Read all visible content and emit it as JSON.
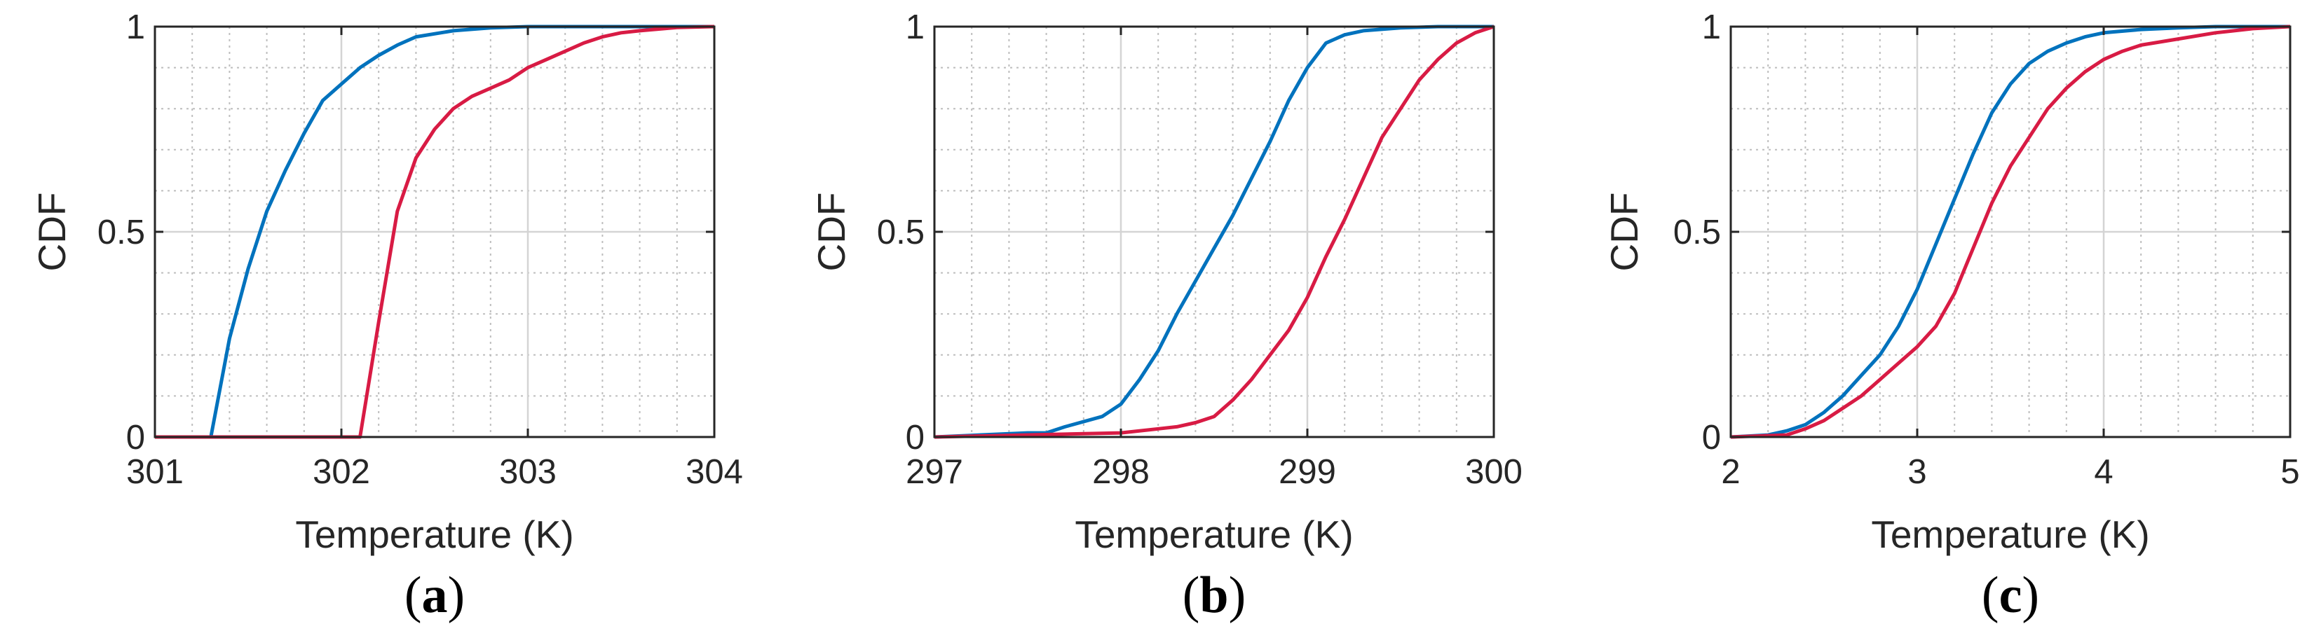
{
  "colors": {
    "series_blue": "#0072BD",
    "series_red": "#D81B44",
    "grid": "#bdbdbd",
    "axes": "#262626"
  },
  "chart_data": [
    {
      "type": "line",
      "panel_label": "a",
      "xlabel": "Temperature (K)",
      "ylabel": "CDF",
      "xlim": [
        301,
        304
      ],
      "ylim": [
        0,
        1
      ],
      "xticks": [
        "301",
        "302",
        "303",
        "304"
      ],
      "yticks": [
        "0",
        "0.5",
        "1"
      ],
      "series": [
        {
          "name": "blue",
          "color": "#0072BD",
          "x": [
            301,
            301.3,
            301.4,
            301.5,
            301.6,
            301.7,
            301.8,
            301.9,
            302.0,
            302.1,
            302.2,
            302.3,
            302.4,
            302.6,
            302.8,
            303.0,
            303.3,
            304.0
          ],
          "y": [
            0,
            0,
            0.24,
            0.41,
            0.55,
            0.65,
            0.74,
            0.82,
            0.86,
            0.9,
            0.93,
            0.955,
            0.975,
            0.99,
            0.997,
            1,
            1,
            1
          ]
        },
        {
          "name": "red",
          "color": "#D81B44",
          "x": [
            301,
            302.1,
            302.2,
            302.3,
            302.4,
            302.5,
            302.6,
            302.7,
            302.8,
            302.9,
            303.0,
            303.1,
            303.2,
            303.3,
            303.4,
            303.5,
            303.6,
            303.8,
            304.0
          ],
          "y": [
            0,
            0,
            0.28,
            0.55,
            0.68,
            0.75,
            0.8,
            0.83,
            0.85,
            0.87,
            0.9,
            0.92,
            0.94,
            0.96,
            0.975,
            0.985,
            0.99,
            0.998,
            1
          ]
        }
      ]
    },
    {
      "type": "line",
      "panel_label": "b",
      "xlabel": "Temperature (K)",
      "ylabel": "CDF",
      "xlim": [
        297,
        300
      ],
      "ylim": [
        0,
        1
      ],
      "xticks": [
        "297",
        "298",
        "299",
        "300"
      ],
      "yticks": [
        "0",
        "0.5",
        "1"
      ],
      "series": [
        {
          "name": "blue",
          "color": "#0072BD",
          "x": [
            297,
            297.5,
            297.6,
            297.7,
            297.9,
            298.0,
            298.1,
            298.2,
            298.3,
            298.4,
            298.5,
            298.6,
            298.7,
            298.8,
            298.9,
            299.0,
            299.1,
            299.2,
            299.3,
            299.5,
            299.7,
            300.0
          ],
          "y": [
            0,
            0.01,
            0.01,
            0.025,
            0.05,
            0.08,
            0.14,
            0.21,
            0.3,
            0.38,
            0.46,
            0.54,
            0.63,
            0.72,
            0.82,
            0.9,
            0.96,
            0.98,
            0.99,
            0.997,
            1,
            1
          ]
        },
        {
          "name": "red",
          "color": "#D81B44",
          "x": [
            297,
            298.0,
            298.2,
            298.3,
            298.4,
            298.5,
            298.6,
            298.7,
            298.8,
            298.9,
            299.0,
            299.1,
            299.2,
            299.3,
            299.4,
            299.5,
            299.6,
            299.7,
            299.8,
            299.9,
            300.0
          ],
          "y": [
            0,
            0.01,
            0.02,
            0.025,
            0.035,
            0.05,
            0.09,
            0.14,
            0.2,
            0.26,
            0.34,
            0.44,
            0.53,
            0.63,
            0.73,
            0.8,
            0.87,
            0.92,
            0.96,
            0.985,
            1
          ]
        }
      ]
    },
    {
      "type": "line",
      "panel_label": "c",
      "xlabel": "Temperature (K)",
      "ylabel": "CDF",
      "xlim": [
        2,
        5
      ],
      "ylim": [
        0,
        1
      ],
      "xticks": [
        "2",
        "3",
        "4",
        "5"
      ],
      "yticks": [
        "0",
        "0.5",
        "1"
      ],
      "series": [
        {
          "name": "blue",
          "color": "#0072BD",
          "x": [
            2.0,
            2.2,
            2.3,
            2.4,
            2.5,
            2.6,
            2.7,
            2.8,
            2.9,
            3.0,
            3.1,
            3.2,
            3.3,
            3.4,
            3.5,
            3.6,
            3.7,
            3.8,
            3.9,
            4.0,
            4.2,
            4.4,
            4.6,
            5.0
          ],
          "y": [
            0,
            0.005,
            0.015,
            0.03,
            0.06,
            0.1,
            0.15,
            0.2,
            0.27,
            0.36,
            0.47,
            0.58,
            0.69,
            0.79,
            0.86,
            0.91,
            0.94,
            0.96,
            0.975,
            0.985,
            0.993,
            0.997,
            1,
            1
          ]
        },
        {
          "name": "red",
          "color": "#D81B44",
          "x": [
            2.0,
            2.3,
            2.4,
            2.5,
            2.6,
            2.7,
            2.8,
            2.9,
            3.0,
            3.1,
            3.2,
            3.3,
            3.4,
            3.5,
            3.6,
            3.7,
            3.8,
            3.9,
            4.0,
            4.1,
            4.2,
            4.4,
            4.6,
            4.8,
            5.0
          ],
          "y": [
            0,
            0.005,
            0.02,
            0.04,
            0.07,
            0.1,
            0.14,
            0.18,
            0.22,
            0.27,
            0.35,
            0.46,
            0.57,
            0.66,
            0.73,
            0.8,
            0.85,
            0.89,
            0.92,
            0.94,
            0.955,
            0.97,
            0.985,
            0.995,
            1
          ]
        }
      ]
    }
  ]
}
